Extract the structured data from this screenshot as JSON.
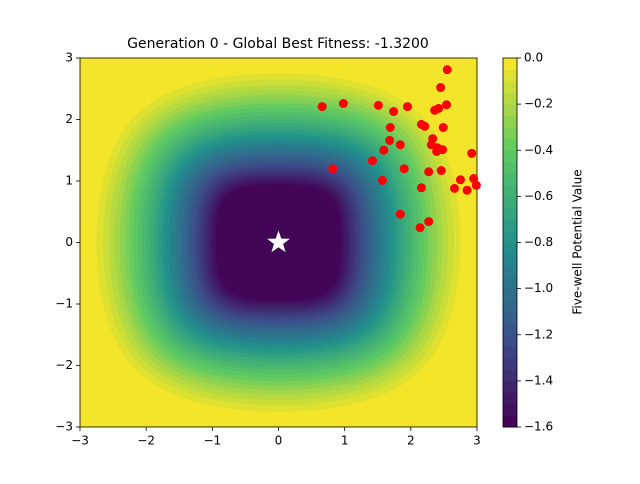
{
  "chart_data": {
    "type": "scatter",
    "title": "Generation 0 - Global Best Fitness: -1.3200",
    "x": [
      2.55,
      2.45,
      0.66,
      0.98,
      1.51,
      1.74,
      1.95,
      2.54,
      2.42,
      2.36,
      1.69,
      2.16,
      2.21,
      2.49,
      1.68,
      1.84,
      2.33,
      2.31,
      1.59,
      2.4,
      2.48,
      2.39,
      2.92,
      1.42,
      0.82,
      1.9,
      2.27,
      2.46,
      1.57,
      2.75,
      2.95,
      2.66,
      2.85,
      2.99,
      2.16,
      1.84,
      2.27,
      2.14
    ],
    "y": [
      2.81,
      2.52,
      2.21,
      2.26,
      2.23,
      2.13,
      2.21,
      2.24,
      2.18,
      2.15,
      1.87,
      1.92,
      1.89,
      1.87,
      1.66,
      1.59,
      1.69,
      1.59,
      1.5,
      1.54,
      1.51,
      1.48,
      1.45,
      1.33,
      1.2,
      1.2,
      1.15,
      1.17,
      1.01,
      1.02,
      1.04,
      0.88,
      0.85,
      0.93,
      0.89,
      0.46,
      0.34,
      0.24
    ],
    "color": "#ff0000",
    "best": {
      "x": 0,
      "y": 0,
      "color": "#ffffff"
    },
    "xlim": [
      -3,
      3
    ],
    "ylim": [
      -3,
      3
    ],
    "xticks": [
      {
        "value": -3,
        "label": "−3"
      },
      {
        "value": -2,
        "label": "−2"
      },
      {
        "value": -1,
        "label": "−1"
      },
      0,
      1,
      2,
      3
    ],
    "yticks": [
      {
        "value": -3,
        "label": "−3"
      },
      {
        "value": -2,
        "label": "−2"
      },
      {
        "value": -1,
        "label": "−1"
      },
      0,
      1,
      2,
      3
    ],
    "colorbar": {
      "label": "Five-well Potential Value",
      "lim": [
        -1.6,
        0
      ],
      "ticks": [
        {
          "value": 0,
          "label": "0.0"
        },
        {
          "value": -0.2,
          "label": "−0.2"
        },
        {
          "value": -0.4,
          "label": "−0.4"
        },
        {
          "value": -0.6,
          "label": "−0.6"
        },
        {
          "value": -0.8,
          "label": "−0.8"
        },
        {
          "value": -1.0,
          "label": "−1.0"
        },
        {
          "value": -1.2,
          "label": "−1.2"
        },
        {
          "value": -1.4,
          "label": "−1.4"
        },
        {
          "value": -1.6,
          "label": "−1.6"
        }
      ]
    }
  }
}
